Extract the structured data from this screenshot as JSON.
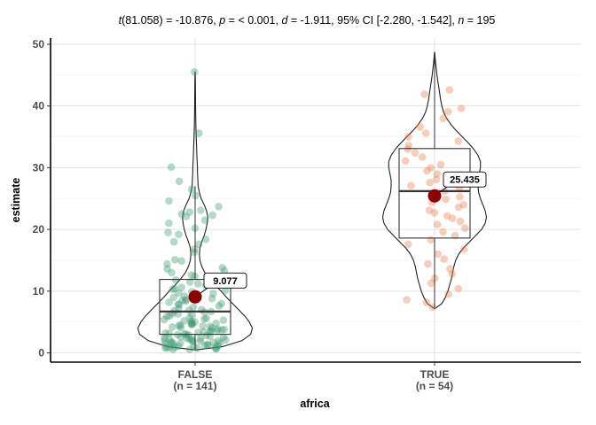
{
  "chart_data": {
    "type": "violin-box-scatter",
    "subtitle": {
      "t_sym": "t",
      "t_rest": "(81.058) = -10.876, ",
      "p_sym": "p",
      "p_rest": " = < 0.001, ",
      "d_sym": "d",
      "d_rest": " = -1.911, 95% CI [-2.280, -1.542], ",
      "n_sym": "n",
      "n_rest": " = 195"
    },
    "xlabel": "africa",
    "ylabel": "estimate",
    "ylim": [
      -1.5,
      51
    ],
    "yticks": [
      0,
      10,
      20,
      30,
      40,
      50
    ],
    "grid": true,
    "groups": [
      {
        "name": "FALSE",
        "n_label": "(n = 141)",
        "color": "#3d9970",
        "mean": 9.077,
        "mean_label": "9.077",
        "box": {
          "q1": 3.0,
          "median": 6.7,
          "q3": 11.9,
          "whisker_low": 0.6,
          "whisker_high": 27.0
        },
        "violin": [
          [
            0.5,
            0.02
          ],
          [
            1,
            0.45
          ],
          [
            2,
            0.78
          ],
          [
            3,
            0.92
          ],
          [
            4,
            0.95
          ],
          [
            5,
            0.9
          ],
          [
            6,
            0.82
          ],
          [
            7,
            0.72
          ],
          [
            8,
            0.62
          ],
          [
            9,
            0.52
          ],
          [
            10,
            0.43
          ],
          [
            11,
            0.33
          ],
          [
            12,
            0.24
          ],
          [
            13,
            0.16
          ],
          [
            14,
            0.11
          ],
          [
            15,
            0.08
          ],
          [
            16,
            0.07
          ],
          [
            17,
            0.08
          ],
          [
            18,
            0.11
          ],
          [
            19,
            0.15
          ],
          [
            20,
            0.18
          ],
          [
            21,
            0.2
          ],
          [
            22,
            0.21
          ],
          [
            23,
            0.19
          ],
          [
            24,
            0.15
          ],
          [
            25,
            0.1
          ],
          [
            26,
            0.07
          ],
          [
            27,
            0.05
          ],
          [
            28,
            0.045
          ],
          [
            29,
            0.04
          ],
          [
            30,
            0.038
          ],
          [
            32,
            0.03
          ],
          [
            34,
            0.022
          ],
          [
            36,
            0.015
          ],
          [
            38,
            0.01
          ],
          [
            40,
            0.008
          ],
          [
            42,
            0.006
          ],
          [
            44,
            0.004
          ],
          [
            45.5,
            0.002
          ]
        ],
        "points": [
          45.5,
          35.6,
          30.1,
          27.8,
          26.5,
          25.5,
          24.6,
          23.7,
          23.1,
          22.8,
          22.5,
          22.3,
          21.5,
          21.0,
          20.2,
          19.2,
          18.4,
          18.0,
          17.6,
          16.3,
          15.1,
          14.4,
          13.8,
          13.3,
          13.0,
          12.6,
          12.2,
          11.8,
          11.5,
          11.2,
          10.9,
          10.6,
          10.4,
          10.1,
          9.9,
          9.7,
          9.4,
          9.2,
          9.0,
          8.8,
          8.6,
          8.4,
          8.2,
          8.0,
          7.8,
          7.6,
          7.4,
          7.2,
          7.0,
          6.9,
          6.7,
          6.6,
          6.4,
          6.3,
          6.1,
          6.0,
          5.9,
          5.7,
          5.6,
          5.5,
          5.3,
          5.2,
          5.1,
          5.0,
          4.9,
          4.8,
          4.7,
          4.6,
          4.5,
          4.4,
          4.3,
          4.2,
          4.1,
          4.0,
          3.9,
          3.8,
          3.7,
          3.6,
          3.5,
          3.4,
          3.3,
          3.2,
          3.1,
          3.0,
          2.95,
          2.9,
          2.8,
          2.7,
          2.6,
          2.5,
          2.45,
          2.4,
          2.3,
          2.2,
          2.15,
          2.1,
          2.0,
          1.95,
          1.9,
          1.8,
          1.75,
          1.7,
          1.6,
          1.55,
          1.5,
          1.4,
          1.35,
          1.3,
          1.2,
          1.15,
          1.1,
          1.0,
          0.95,
          0.9,
          0.85,
          0.8,
          0.75,
          0.7,
          0.65,
          0.6,
          12.4,
          13.6,
          14.9,
          16.8,
          19.5,
          22.1,
          7.9,
          8.5,
          9.6,
          10.3,
          6.8,
          5.4,
          4.35,
          3.15,
          2.25,
          1.65,
          1.05,
          0.55,
          2.05,
          3.55,
          4.65
        ]
      },
      {
        "name": "TRUE",
        "n_label": "(n = 54)",
        "color": "#e67e50",
        "mean": 25.435,
        "mean_label": "25.435",
        "box": {
          "q1": 18.6,
          "median": 26.2,
          "q3": 33.1,
          "whisker_low": 7.3,
          "whisker_high": 48.5
        },
        "violin": [
          [
            7.2,
            0.01
          ],
          [
            8,
            0.12
          ],
          [
            9,
            0.18
          ],
          [
            10,
            0.22
          ],
          [
            11,
            0.25
          ],
          [
            12,
            0.28
          ],
          [
            13,
            0.3
          ],
          [
            14,
            0.32
          ],
          [
            15,
            0.35
          ],
          [
            16,
            0.4
          ],
          [
            17,
            0.48
          ],
          [
            18,
            0.58
          ],
          [
            19,
            0.68
          ],
          [
            20,
            0.78
          ],
          [
            21,
            0.84
          ],
          [
            22,
            0.86
          ],
          [
            23,
            0.84
          ],
          [
            24,
            0.8
          ],
          [
            25,
            0.76
          ],
          [
            26,
            0.73
          ],
          [
            27,
            0.72
          ],
          [
            28,
            0.72
          ],
          [
            29,
            0.74
          ],
          [
            30,
            0.76
          ],
          [
            31,
            0.76
          ],
          [
            32,
            0.72
          ],
          [
            33,
            0.65
          ],
          [
            34,
            0.56
          ],
          [
            35,
            0.46
          ],
          [
            36,
            0.36
          ],
          [
            37,
            0.27
          ],
          [
            38,
            0.2
          ],
          [
            39,
            0.15
          ],
          [
            40,
            0.12
          ],
          [
            41,
            0.1
          ],
          [
            42,
            0.085
          ],
          [
            43,
            0.07
          ],
          [
            44,
            0.055
          ],
          [
            45,
            0.04
          ],
          [
            46,
            0.028
          ],
          [
            47,
            0.016
          ],
          [
            48,
            0.008
          ],
          [
            48.7,
            0.002
          ]
        ],
        "points": [
          42.6,
          41.9,
          39.6,
          39.1,
          38.0,
          36.6,
          35.6,
          35.0,
          34.3,
          33.6,
          33.0,
          32.4,
          31.7,
          31.1,
          30.5,
          30.0,
          29.5,
          29.0,
          28.5,
          28.1,
          27.6,
          27.1,
          26.7,
          26.2,
          25.8,
          25.3,
          24.9,
          24.4,
          24.0,
          23.6,
          23.1,
          22.7,
          22.2,
          21.8,
          21.3,
          20.8,
          20.2,
          19.6,
          19.0,
          18.3,
          17.6,
          16.8,
          16.0,
          15.2,
          14.4,
          13.6,
          12.8,
          12.1,
          11.3,
          10.4,
          9.5,
          8.6,
          8.2,
          7.4
        ]
      }
    ]
  }
}
